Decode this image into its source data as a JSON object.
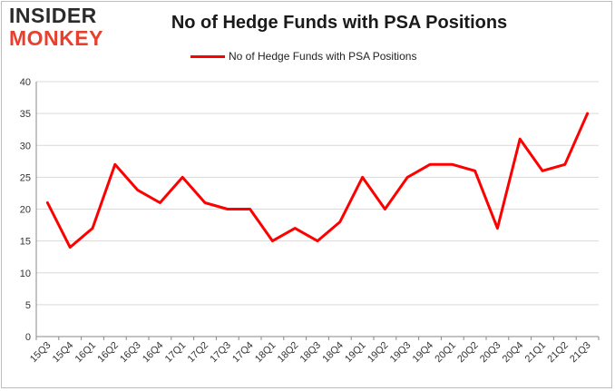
{
  "logo": {
    "line1": "INSIDER",
    "line2": "MONKEY"
  },
  "colors": {
    "series": "#ff0000",
    "grid": "#d9d9d9",
    "logo_accent": "#e8402e"
  },
  "chart_data": {
    "type": "line",
    "title": "No of Hedge Funds with PSA Positions",
    "legend_position": "top",
    "grid": true,
    "ylim": [
      0,
      40
    ],
    "yticks": [
      0,
      5,
      10,
      15,
      20,
      25,
      30,
      35,
      40
    ],
    "categories": [
      "15Q3",
      "15Q4",
      "16Q1",
      "16Q2",
      "16Q3",
      "16Q4",
      "17Q1",
      "17Q2",
      "17Q3",
      "17Q4",
      "18Q1",
      "18Q2",
      "18Q3",
      "18Q4",
      "19Q1",
      "19Q2",
      "19Q3",
      "19Q4",
      "20Q1",
      "20Q2",
      "20Q3",
      "20Q4",
      "21Q1",
      "21Q2",
      "21Q3"
    ],
    "series": [
      {
        "name": "No of Hedge Funds with PSA Positions",
        "values": [
          21,
          14,
          17,
          27,
          23,
          21,
          25,
          21,
          20,
          20,
          15,
          17,
          15,
          18,
          25,
          20,
          25,
          27,
          27,
          26,
          17,
          31,
          26,
          27,
          35
        ]
      }
    ]
  }
}
